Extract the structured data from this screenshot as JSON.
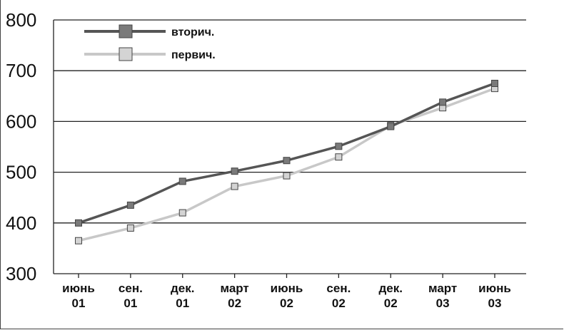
{
  "chart_data": {
    "type": "line",
    "categories": [
      [
        "июнь",
        "01"
      ],
      [
        "сен.",
        "01"
      ],
      [
        "дек.",
        "01"
      ],
      [
        "март",
        "02"
      ],
      [
        "июнь",
        "02"
      ],
      [
        "сен.",
        "02"
      ],
      [
        "дек.",
        "02"
      ],
      [
        "март",
        "03"
      ],
      [
        "июнь",
        "03"
      ]
    ],
    "series": [
      {
        "name": "вторич.",
        "color": "#555555",
        "marker_color": "#7a7a7a",
        "values": [
          400,
          435,
          482,
          502,
          523,
          551,
          590,
          638,
          675
        ]
      },
      {
        "name": "первич.",
        "color": "#c8c8c8",
        "marker_color": "#d4d4d4",
        "values": [
          365,
          390,
          420,
          472,
          493,
          530,
          592,
          627,
          665
        ]
      }
    ],
    "ylim": [
      300,
      800
    ],
    "yticks": [
      "300",
      "400",
      "500",
      "600",
      "700",
      "800"
    ],
    "grid": true,
    "legend": "top-left"
  }
}
